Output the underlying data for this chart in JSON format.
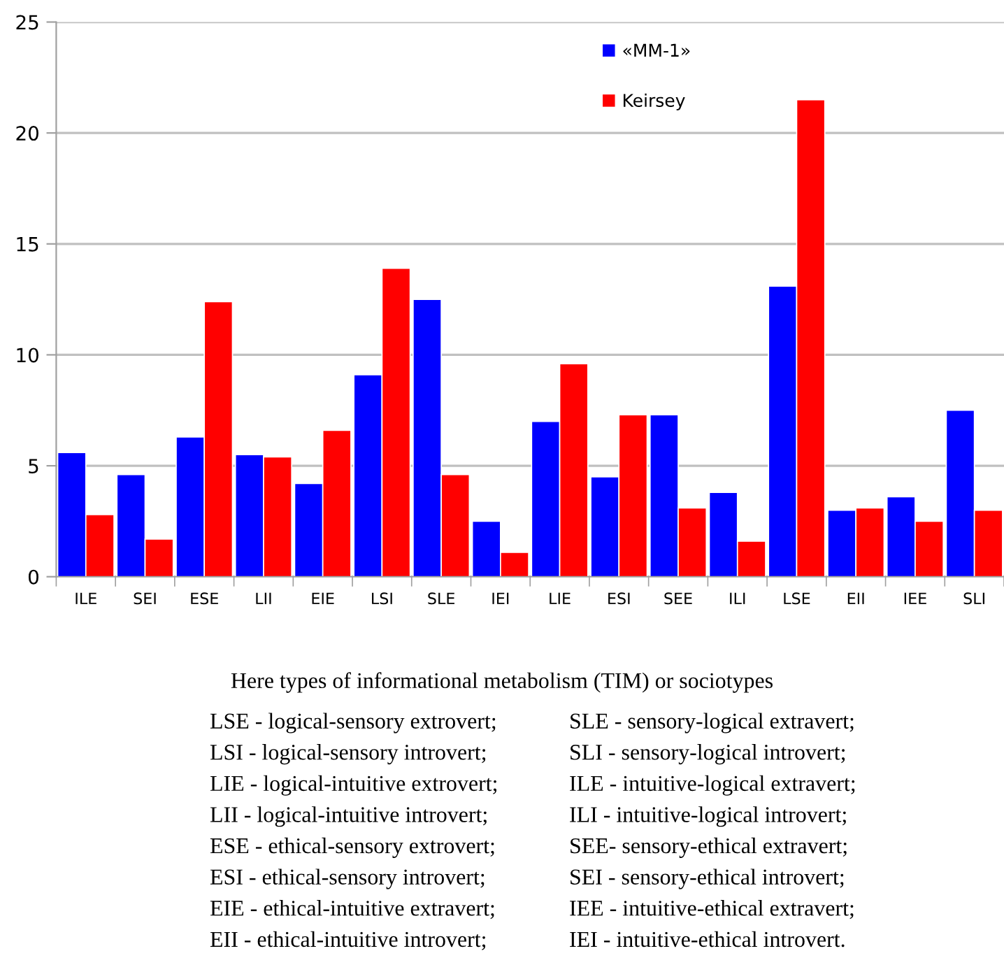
{
  "chart_data": {
    "type": "bar",
    "categories": [
      "ILE",
      "SEI",
      "ESE",
      "LII",
      "EIE",
      "LSI",
      "SLE",
      "IEI",
      "LIE",
      "ESI",
      "SEE",
      "ILI",
      "LSE",
      "EII",
      "IEE",
      "SLI"
    ],
    "series": [
      {
        "name": "«MM-1»",
        "color": "#0000ff",
        "values": [
          5.6,
          4.6,
          6.3,
          5.5,
          4.2,
          9.1,
          12.5,
          2.5,
          7.0,
          4.5,
          7.3,
          3.8,
          13.1,
          3.0,
          3.6,
          7.5
        ]
      },
      {
        "name": "Keirsey",
        "color": "#ff0000",
        "values": [
          2.8,
          1.7,
          12.4,
          5.4,
          6.6,
          13.9,
          4.6,
          1.1,
          9.6,
          7.3,
          3.1,
          1.6,
          21.5,
          3.1,
          2.5,
          3.0
        ]
      }
    ],
    "ylim": [
      0,
      25
    ],
    "yticks": [
      0,
      5,
      10,
      15,
      20,
      25
    ],
    "grid": "y",
    "legend": "top right",
    "annotations": [
      "Here types of informational metabolism (TIM) or sociotypes",
      "LSE - logical-sensory extrovert;",
      "LSI - logical-sensory introvert;",
      "LIE - logical-intuitive extrovert;",
      "LII - logical-intuitive introvert;",
      "ESE - ethical-sensory extrovert;",
      "ESI - ethical-sensory introvert;",
      "EIE - ethical-intuitive extravert;",
      "EII - ethical-intuitive introvert;",
      "SLE - sensory-logical extravert;",
      "SLI - sensory-logical introvert;",
      "ILE - intuitive-logical extravert;",
      "ILI - intuitive-logical introvert;",
      "SEE- sensory-ethical extravert;",
      "SEI - sensory-ethical introvert;",
      "IEE - intuitive-ethical extravert;",
      "IEI - intuitive-ethical introvert."
    ]
  }
}
